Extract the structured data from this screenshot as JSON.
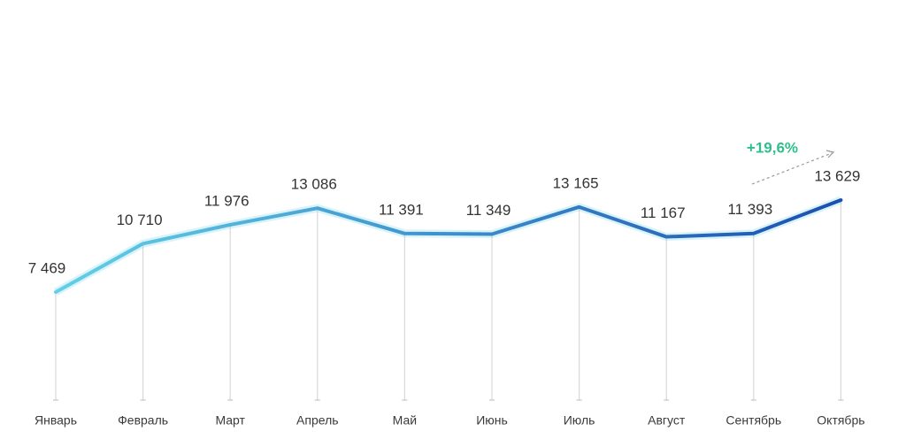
{
  "chart_data": {
    "type": "line",
    "categories": [
      "Январь",
      "Февраль",
      "Март",
      "Апрель",
      "Май",
      "Июнь",
      "Июль",
      "Август",
      "Сентябрь",
      "Октябрь"
    ],
    "values": [
      7469,
      10710,
      11976,
      13086,
      11391,
      11349,
      13165,
      11167,
      11393,
      13629
    ],
    "value_labels": [
      "7 469",
      "10 710",
      "11 976",
      "13 086",
      "11 391",
      "11 349",
      "13 165",
      "11 167",
      "11 393",
      "13 629"
    ],
    "ylim": [
      0,
      16000
    ],
    "colors": [
      "#62d0e6",
      "#1c4fb0"
    ],
    "annotation": "+19,6%",
    "annotation_color": "#2fbf8c"
  }
}
